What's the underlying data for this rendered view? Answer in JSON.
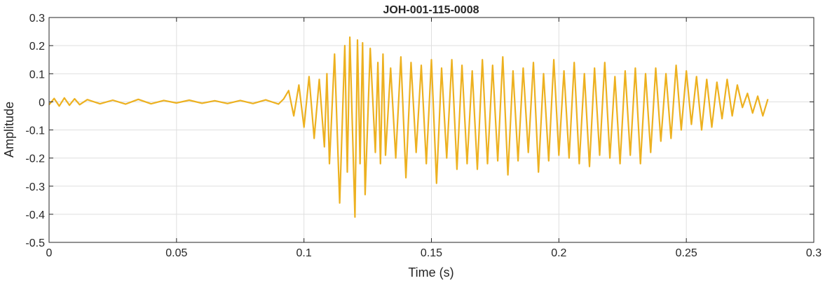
{
  "chart_data": {
    "type": "line",
    "title": "JOH-001-115-0008",
    "xlabel": "Time (s)",
    "ylabel": "Amplitude",
    "xlim": [
      0,
      0.3
    ],
    "ylim": [
      -0.5,
      0.3
    ],
    "grid": true,
    "x_ticks": [
      0,
      0.05,
      0.1,
      0.15,
      0.2,
      0.25,
      0.3
    ],
    "x_tick_labels": [
      "0",
      "0.05",
      "0.1",
      "0.15",
      "0.2",
      "0.25",
      "0.3"
    ],
    "y_ticks": [
      0.3,
      0.2,
      0.1,
      0,
      -0.1,
      -0.2,
      -0.3,
      -0.4,
      -0.5
    ],
    "y_tick_labels": [
      "0.3",
      "0.2",
      "0.1",
      "0",
      "-0.1",
      "-0.2",
      "-0.3",
      "-0.4",
      "-0.5"
    ],
    "series": [
      {
        "color": "#EDB120",
        "x": [
          0,
          0.002,
          0.004,
          0.006,
          0.008,
          0.01,
          0.012,
          0.015,
          0.02,
          0.025,
          0.03,
          0.035,
          0.04,
          0.045,
          0.05,
          0.055,
          0.06,
          0.065,
          0.07,
          0.075,
          0.08,
          0.085,
          0.09,
          0.092,
          0.094,
          0.096,
          0.098,
          0.1,
          0.102,
          0.104,
          0.106,
          0.108,
          0.109,
          0.11,
          0.112,
          0.114,
          0.116,
          0.117,
          0.118,
          0.12,
          0.121,
          0.122,
          0.123,
          0.124,
          0.126,
          0.128,
          0.129,
          0.13,
          0.131,
          0.132,
          0.134,
          0.136,
          0.138,
          0.14,
          0.142,
          0.144,
          0.146,
          0.148,
          0.15,
          0.152,
          0.154,
          0.156,
          0.158,
          0.16,
          0.162,
          0.164,
          0.166,
          0.168,
          0.17,
          0.172,
          0.174,
          0.176,
          0.178,
          0.18,
          0.182,
          0.184,
          0.186,
          0.188,
          0.19,
          0.192,
          0.194,
          0.196,
          0.198,
          0.2,
          0.202,
          0.204,
          0.206,
          0.208,
          0.21,
          0.212,
          0.214,
          0.216,
          0.218,
          0.22,
          0.222,
          0.224,
          0.226,
          0.228,
          0.23,
          0.232,
          0.234,
          0.236,
          0.238,
          0.24,
          0.242,
          0.244,
          0.246,
          0.248,
          0.25,
          0.252,
          0.254,
          0.256,
          0.258,
          0.26,
          0.262,
          0.264,
          0.266,
          0.268,
          0.27,
          0.272,
          0.274,
          0.276,
          0.278,
          0.28,
          0.282
        ],
        "y": [
          -0.01,
          0.012,
          -0.015,
          0.014,
          -0.012,
          0.011,
          -0.01,
          0.008,
          -0.007,
          0.006,
          -0.008,
          0.009,
          -0.007,
          0.005,
          -0.004,
          0.006,
          -0.005,
          0.004,
          -0.006,
          0.005,
          -0.006,
          0.007,
          -0.008,
          0.01,
          0.04,
          -0.05,
          0.06,
          -0.09,
          0.09,
          -0.13,
          0.08,
          -0.16,
          0.1,
          -0.22,
          0.17,
          -0.36,
          0.2,
          -0.25,
          0.23,
          -0.41,
          0.22,
          -0.22,
          0.21,
          -0.33,
          0.19,
          -0.18,
          0.14,
          -0.22,
          0.17,
          -0.19,
          0.12,
          -0.2,
          0.16,
          -0.27,
          0.14,
          -0.18,
          0.13,
          -0.22,
          0.15,
          -0.29,
          0.12,
          -0.2,
          0.15,
          -0.24,
          0.13,
          -0.22,
          0.11,
          -0.24,
          0.15,
          -0.22,
          0.13,
          -0.21,
          0.16,
          -0.26,
          0.11,
          -0.21,
          0.12,
          -0.18,
          0.14,
          -0.25,
          0.1,
          -0.21,
          0.15,
          -0.19,
          0.11,
          -0.2,
          0.14,
          -0.22,
          0.1,
          -0.23,
          0.12,
          -0.19,
          0.14,
          -0.2,
          0.09,
          -0.22,
          0.11,
          -0.19,
          0.12,
          -0.22,
          0.1,
          -0.18,
          0.12,
          -0.14,
          0.1,
          -0.13,
          0.13,
          -0.1,
          0.11,
          -0.08,
          0.09,
          -0.1,
          0.08,
          -0.09,
          0.07,
          -0.06,
          0.08,
          -0.05,
          0.06,
          -0.02,
          0.03,
          -0.04,
          0.02,
          -0.05,
          0.01
        ]
      }
    ]
  }
}
